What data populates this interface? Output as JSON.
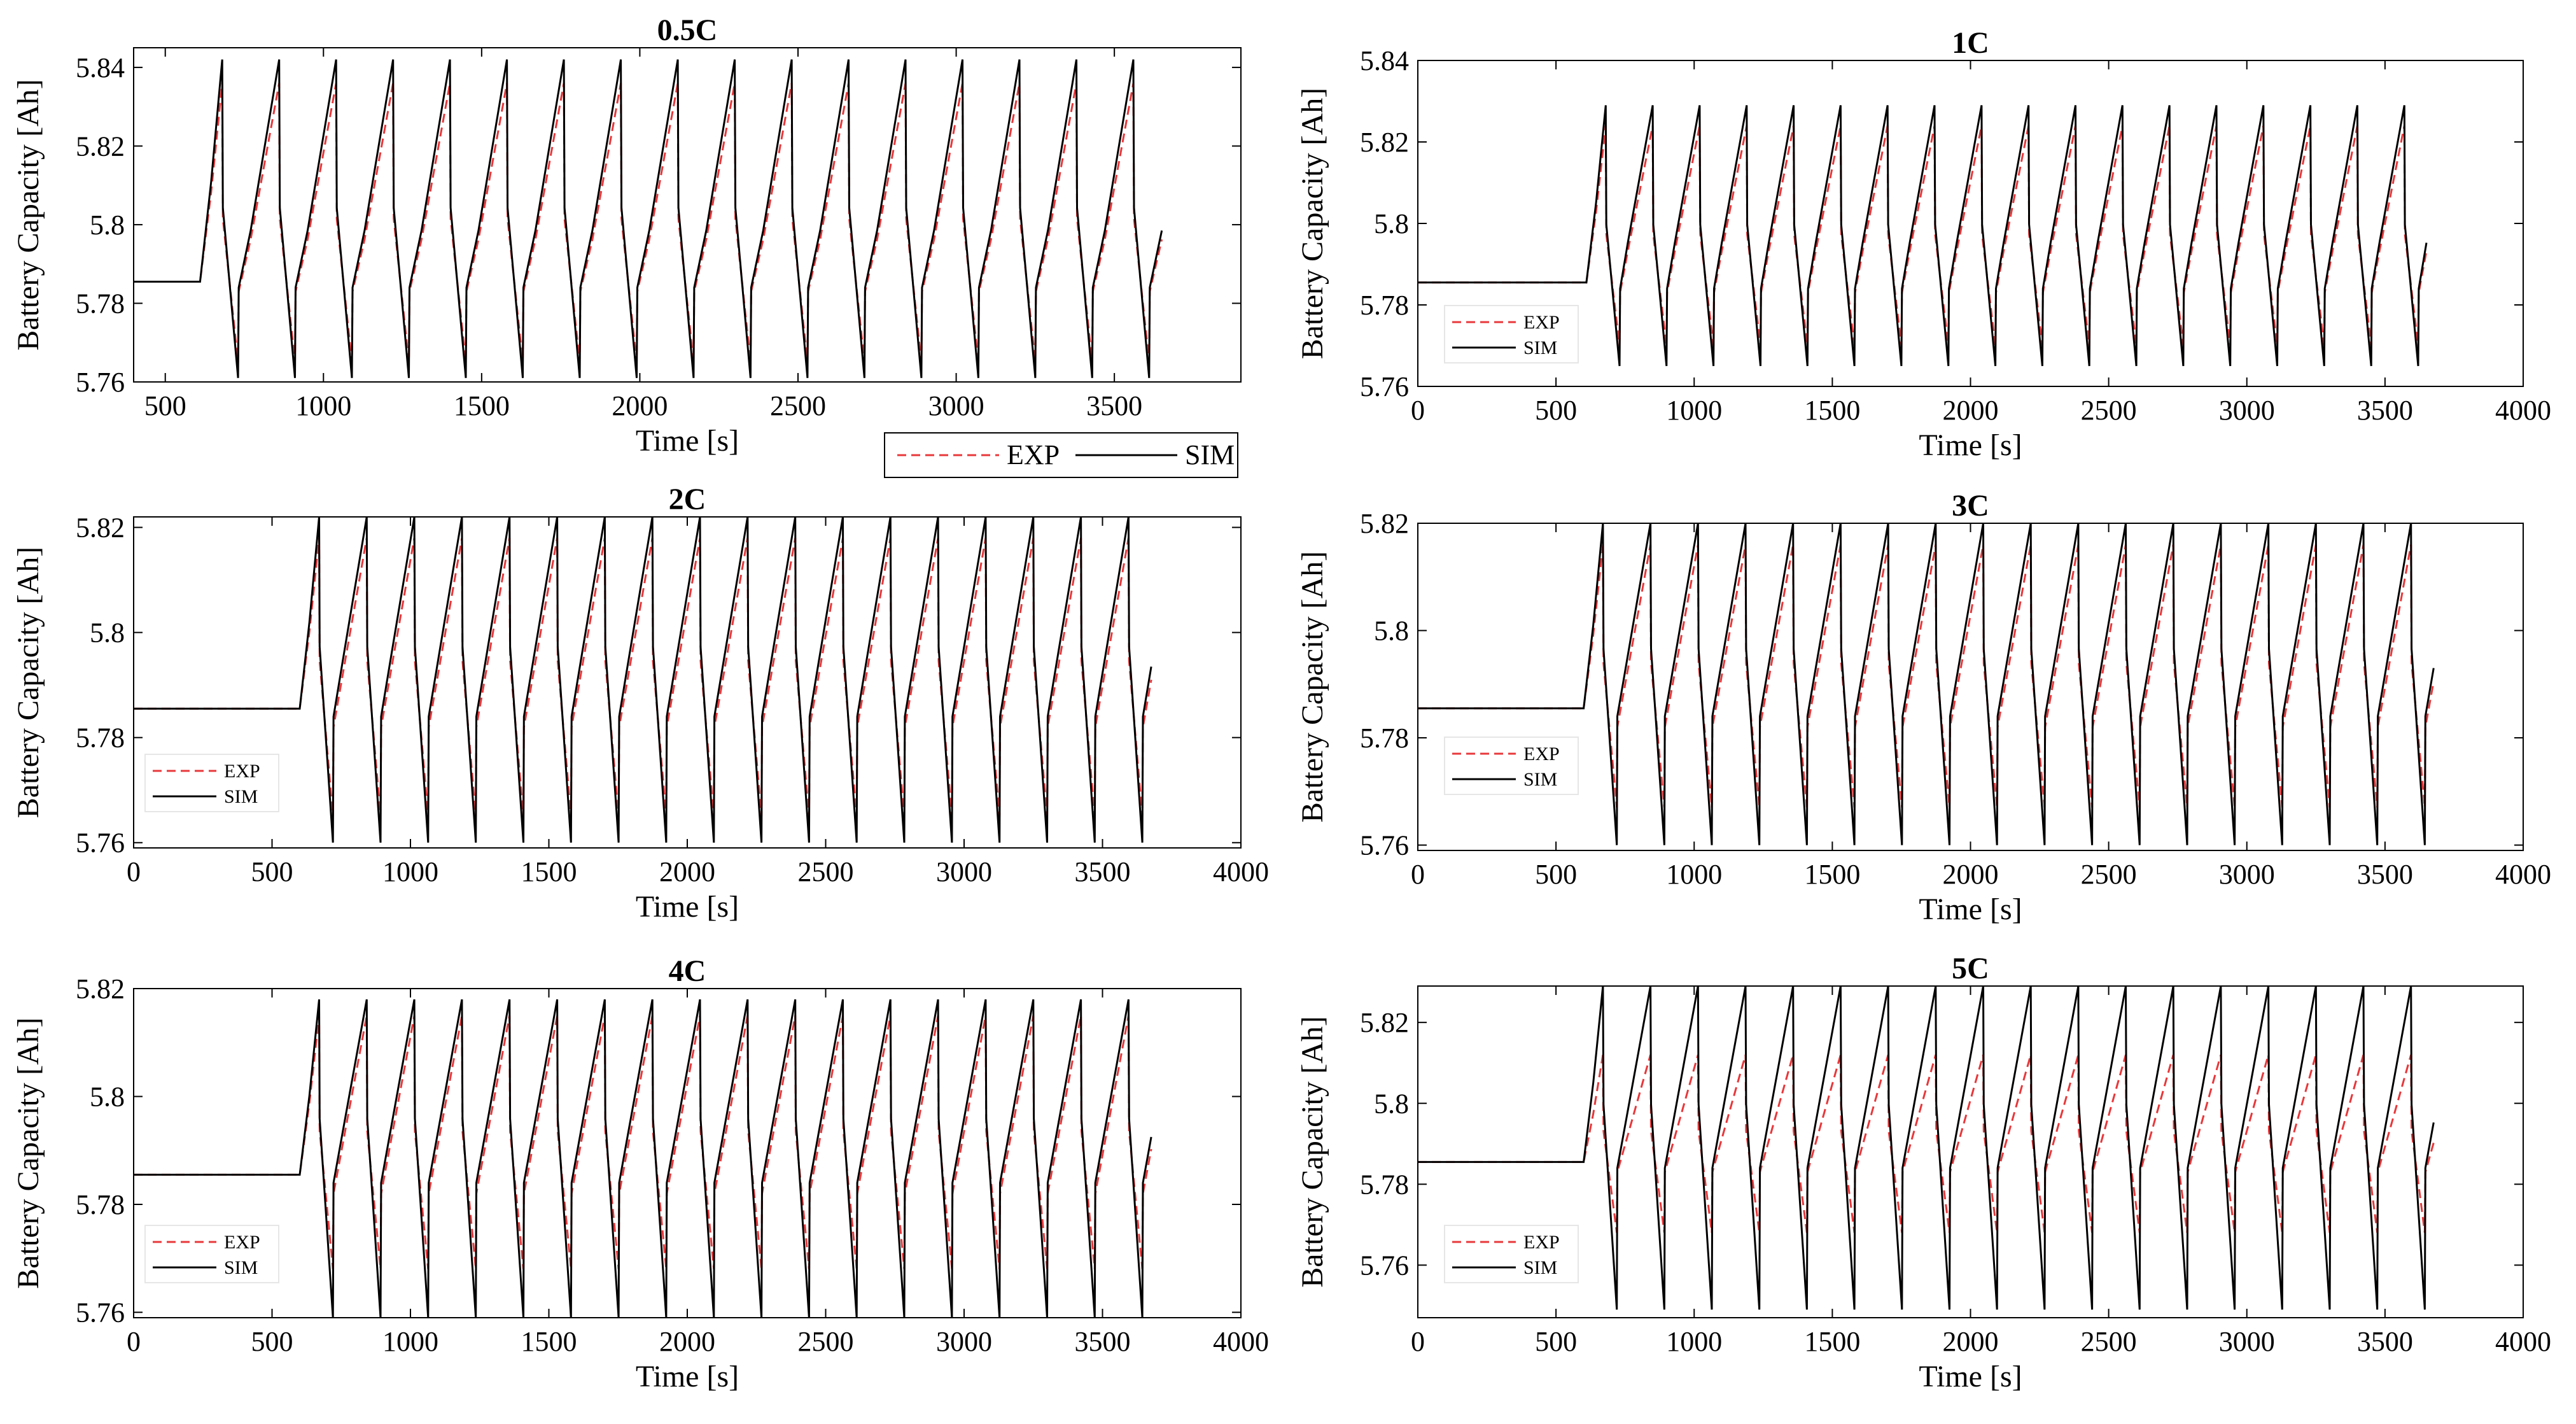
{
  "chart_data": [
    {
      "type": "line",
      "title": "0.5C",
      "xlabel": "Time [s]",
      "ylabel": "Battery Capacity [Ah]",
      "xlim": [
        400,
        3900
      ],
      "ylim": [
        5.76,
        5.845
      ],
      "xticks": [
        "500",
        "1000",
        "1500",
        "2000",
        "2500",
        "3000",
        "3500"
      ],
      "yticks": [
        "5.76",
        "5.78",
        "5.8",
        "5.82",
        "5.84"
      ],
      "legend": {
        "position": "below-right",
        "entries": [
          "EXP",
          "SIM"
        ]
      },
      "series": [
        {
          "name": "EXP",
          "baseline": 5.7855,
          "t_start": 610,
          "period": 180,
          "cycles": 17,
          "high": 5.836,
          "low": 5.765,
          "mid": 5.783
        },
        {
          "name": "SIM",
          "baseline": 5.7855,
          "t_start": 610,
          "period": 180,
          "cycles": 17,
          "high": 5.842,
          "low": 5.761,
          "mid": 5.784
        }
      ]
    },
    {
      "type": "line",
      "title": "1C",
      "xlabel": "Time [s]",
      "ylabel": "Battery Capacity [Ah]",
      "xlim": [
        0,
        4000
      ],
      "ylim": [
        5.76,
        5.84
      ],
      "xticks": [
        "0",
        "500",
        "1000",
        "1500",
        "2000",
        "2500",
        "3000",
        "3500",
        "4000"
      ],
      "yticks": [
        "5.76",
        "5.78",
        "5.8",
        "5.82",
        "5.84"
      ],
      "legend": {
        "position": "lower-left",
        "entries": [
          "EXP",
          "SIM"
        ]
      },
      "series": [
        {
          "name": "EXP",
          "baseline": 5.7855,
          "t_start": 610,
          "period": 170,
          "cycles": 18,
          "high": 5.824,
          "low": 5.77,
          "mid": 5.783
        },
        {
          "name": "SIM",
          "baseline": 5.7855,
          "t_start": 610,
          "period": 170,
          "cycles": 18,
          "high": 5.829,
          "low": 5.765,
          "mid": 5.784
        }
      ]
    },
    {
      "type": "line",
      "title": "2C",
      "xlabel": "Time [s]",
      "ylabel": "Battery Capacity [Ah]",
      "xlim": [
        0,
        4000
      ],
      "ylim": [
        5.759,
        5.822
      ],
      "xticks": [
        "0",
        "500",
        "1000",
        "1500",
        "2000",
        "2500",
        "3000",
        "3500",
        "4000"
      ],
      "yticks": [
        "5.76",
        "5.78",
        "5.8",
        "5.82"
      ],
      "legend": {
        "position": "lower-left",
        "entries": [
          "EXP",
          "SIM"
        ]
      },
      "series": [
        {
          "name": "EXP",
          "baseline": 5.7855,
          "t_start": 600,
          "period": 172,
          "cycles": 18,
          "high": 5.818,
          "low": 5.765,
          "mid": 5.782
        },
        {
          "name": "SIM",
          "baseline": 5.7855,
          "t_start": 600,
          "period": 172,
          "cycles": 18,
          "high": 5.822,
          "low": 5.76,
          "mid": 5.784
        }
      ]
    },
    {
      "type": "line",
      "title": "3C",
      "xlabel": "Time [s]",
      "ylabel": "Battery Capacity [Ah]",
      "xlim": [
        0,
        4000
      ],
      "ylim": [
        5.759,
        5.82
      ],
      "xticks": [
        "0",
        "500",
        "1000",
        "1500",
        "2000",
        "2500",
        "3000",
        "3500",
        "4000"
      ],
      "yticks": [
        "5.76",
        "5.78",
        "5.8",
        "5.82"
      ],
      "legend": {
        "position": "lower-left",
        "entries": [
          "EXP",
          "SIM"
        ]
      },
      "series": [
        {
          "name": "EXP",
          "baseline": 5.7855,
          "t_start": 600,
          "period": 172,
          "cycles": 18,
          "high": 5.816,
          "low": 5.767,
          "mid": 5.782
        },
        {
          "name": "SIM",
          "baseline": 5.7855,
          "t_start": 600,
          "period": 172,
          "cycles": 18,
          "high": 5.82,
          "low": 5.76,
          "mid": 5.784
        }
      ]
    },
    {
      "type": "line",
      "title": "4C",
      "xlabel": "Time [s]",
      "ylabel": "Battery Capacity [Ah]",
      "xlim": [
        0,
        4000
      ],
      "ylim": [
        5.759,
        5.82
      ],
      "xticks": [
        "0",
        "500",
        "1000",
        "1500",
        "2000",
        "2500",
        "3000",
        "3500",
        "4000"
      ],
      "yticks": [
        "5.76",
        "5.78",
        "5.8",
        "5.82"
      ],
      "legend": {
        "position": "lower-left",
        "entries": [
          "EXP",
          "SIM"
        ]
      },
      "series": [
        {
          "name": "EXP",
          "baseline": 5.7855,
          "t_start": 600,
          "period": 172,
          "cycles": 18,
          "high": 5.815,
          "low": 5.768,
          "mid": 5.782
        },
        {
          "name": "SIM",
          "baseline": 5.7855,
          "t_start": 600,
          "period": 172,
          "cycles": 18,
          "high": 5.818,
          "low": 5.759,
          "mid": 5.784
        }
      ]
    },
    {
      "type": "line",
      "title": "5C",
      "xlabel": "Time [s]",
      "ylabel": "Battery Capacity [Ah]",
      "xlim": [
        0,
        4000
      ],
      "ylim": [
        5.747,
        5.829
      ],
      "xticks": [
        "0",
        "500",
        "1000",
        "1500",
        "2000",
        "2500",
        "3000",
        "3500",
        "4000"
      ],
      "yticks": [
        "5.76",
        "5.78",
        "5.8",
        "5.82"
      ],
      "legend": {
        "position": "lower-left",
        "entries": [
          "EXP",
          "SIM"
        ]
      },
      "series": [
        {
          "name": "EXP",
          "baseline": 5.7855,
          "t_start": 600,
          "period": 172,
          "cycles": 18,
          "high": 5.812,
          "low": 5.768,
          "mid": 5.783
        },
        {
          "name": "SIM",
          "baseline": 5.7855,
          "t_start": 600,
          "period": 172,
          "cycles": 18,
          "high": 5.829,
          "low": 5.749,
          "mid": 5.784
        }
      ]
    }
  ],
  "colors": {
    "exp": "#e8373a",
    "sim": "#000000",
    "axes": "#000000",
    "background": "#ffffff"
  }
}
